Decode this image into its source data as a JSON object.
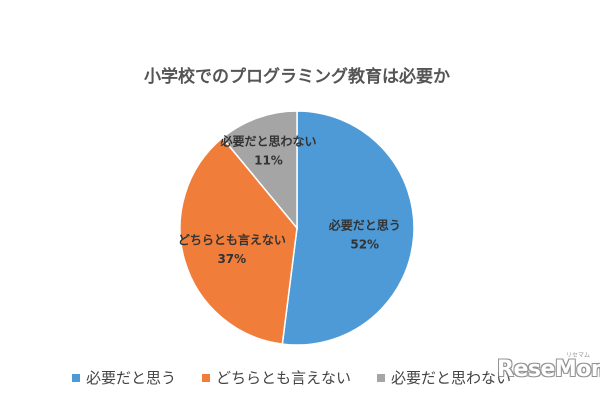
{
  "chart_data": {
    "type": "pie",
    "title": "小学校でのプログラミング教育は必要か",
    "slices": [
      {
        "label": "必要だと思う",
        "value": 52,
        "value_label": "52%",
        "color": "#4E9AD6"
      },
      {
        "label": "どちらとも言えない",
        "value": 37,
        "value_label": "37%",
        "color": "#F07E3A"
      },
      {
        "label": "必要だと思わない",
        "value": 11,
        "value_label": "11%",
        "color": "#A5A5A5"
      }
    ],
    "legend_position": "bottom"
  },
  "watermark": {
    "text": "ReseMom",
    "ruby": "リセマム"
  }
}
